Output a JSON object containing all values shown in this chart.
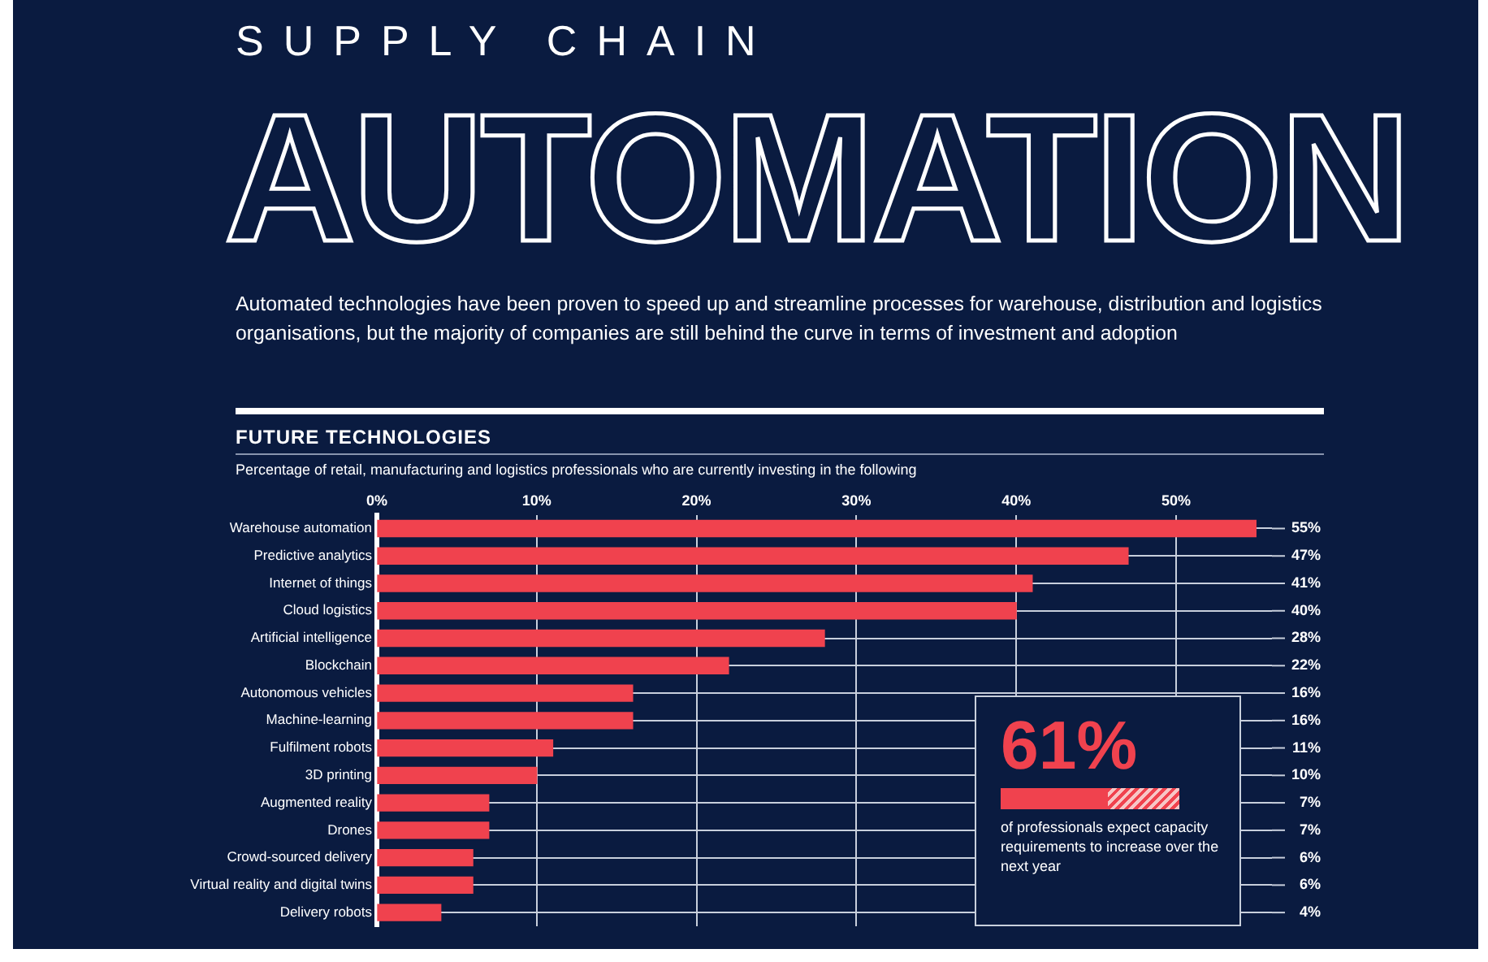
{
  "chart_data": {
    "type": "bar",
    "orientation": "horizontal",
    "title": "SUPPLY CHAIN\nAUTOMATION",
    "subtitle": "Automated technologies have been proven to speed up and streamline processes for warehouse, distribution and logistics organisations, but the majority of companies are still behind the curve in terms of investment and adoption",
    "annotations": [
      "FUTURE TECHNOLOGIES",
      "Percentage of retail, manufacturing and logistics professionals who are currently investing in the following",
      "61%",
      "of professionals expect capacity requirements to increase over the next year"
    ],
    "categories": [
      "Warehouse automation",
      "Predictive analytics",
      "Internet of things",
      "Cloud logistics",
      "Artificial intelligence",
      "Blockchain",
      "Autonomous vehicles",
      "Machine-learning",
      "Fulfilment robots",
      "3D printing",
      "Augmented reality",
      "Drones",
      "Crowd-sourced delivery",
      "Virtual reality and digital twins",
      "Delivery robots"
    ],
    "values": [
      55,
      47,
      41,
      40,
      28,
      22,
      16,
      16,
      11,
      10,
      7,
      7,
      6,
      6,
      4
    ],
    "value_labels": [
      "55%",
      "47%",
      "41%",
      "40%",
      "28%",
      "22%",
      "16%",
      "16%",
      "11%",
      "10%",
      "7%",
      "7%",
      "6%",
      "6%",
      "4%"
    ],
    "color": "#f0424e",
    "xlim": [
      0,
      56
    ],
    "xticks": [
      {
        "value": 0,
        "label": "0%"
      },
      {
        "value": 10,
        "label": "10%"
      },
      {
        "value": 20,
        "label": "20%"
      },
      {
        "value": 30,
        "label": "30%"
      },
      {
        "value": 40,
        "label": "40%"
      },
      {
        "value": 50,
        "label": "50%"
      }
    ],
    "grid": true
  }
}
